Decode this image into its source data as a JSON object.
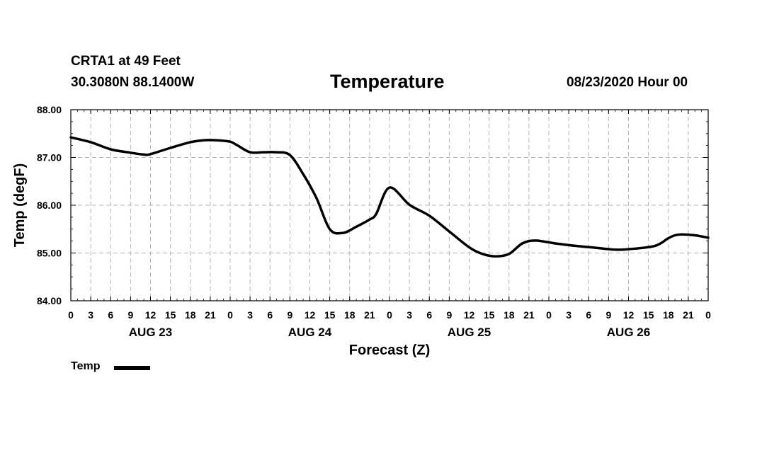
{
  "header": {
    "station": "CRTA1 at 49 Feet",
    "coords": "30.3080N 88.1400W",
    "title": "Temperature",
    "datetime": "08/23/2020 Hour 00"
  },
  "legend": {
    "label": "Temp",
    "color": "#000000"
  },
  "chart_data": {
    "type": "line",
    "title": "Temperature",
    "xlabel": "Forecast (Z)",
    "ylabel": "Temp (degF)",
    "ylim": [
      84.0,
      88.0
    ],
    "xlim": [
      0,
      96
    ],
    "x_unit": "hours",
    "grid": true,
    "legend_position": "bottom-left",
    "y_ticks": [
      "84.00",
      "85.00",
      "86.00",
      "87.00",
      "88.00"
    ],
    "y_tick_values": [
      84.0,
      85.0,
      86.0,
      87.0,
      88.0
    ],
    "x_tick_labels": [
      "0",
      "3",
      "6",
      "9",
      "12",
      "15",
      "18",
      "21",
      "0",
      "3",
      "6",
      "9",
      "12",
      "15",
      "18",
      "21",
      "0",
      "3",
      "6",
      "9",
      "12",
      "15",
      "18",
      "21",
      "0",
      "3",
      "6",
      "9",
      "12",
      "15",
      "18",
      "21",
      "0"
    ],
    "day_labels": [
      {
        "label": "AUG 23",
        "hour": 12
      },
      {
        "label": "AUG 24",
        "hour": 36
      },
      {
        "label": "AUG 25",
        "hour": 60
      },
      {
        "label": "AUG 26",
        "hour": 84
      }
    ],
    "series": [
      {
        "name": "Temp",
        "x": [
          0,
          3,
          6,
          9,
          11,
          12,
          15,
          18,
          20,
          22,
          24,
          25,
          27,
          29,
          31,
          33,
          35,
          37,
          39,
          41,
          43,
          45,
          46,
          48,
          51,
          54,
          57,
          60,
          62,
          64,
          66,
          68,
          70,
          73,
          76,
          79,
          82,
          84,
          88,
          90,
          91,
          92,
          94,
          96
        ],
        "y": [
          87.42,
          87.32,
          87.17,
          87.1,
          87.06,
          87.07,
          87.2,
          87.32,
          87.36,
          87.36,
          87.33,
          87.26,
          87.11,
          87.11,
          87.11,
          87.05,
          86.65,
          86.15,
          85.5,
          85.42,
          85.55,
          85.7,
          85.82,
          86.37,
          86.01,
          85.78,
          85.45,
          85.12,
          84.98,
          84.93,
          84.98,
          85.2,
          85.26,
          85.2,
          85.15,
          85.11,
          85.07,
          85.08,
          85.15,
          85.31,
          85.37,
          85.39,
          85.37,
          85.32
        ]
      }
    ]
  }
}
